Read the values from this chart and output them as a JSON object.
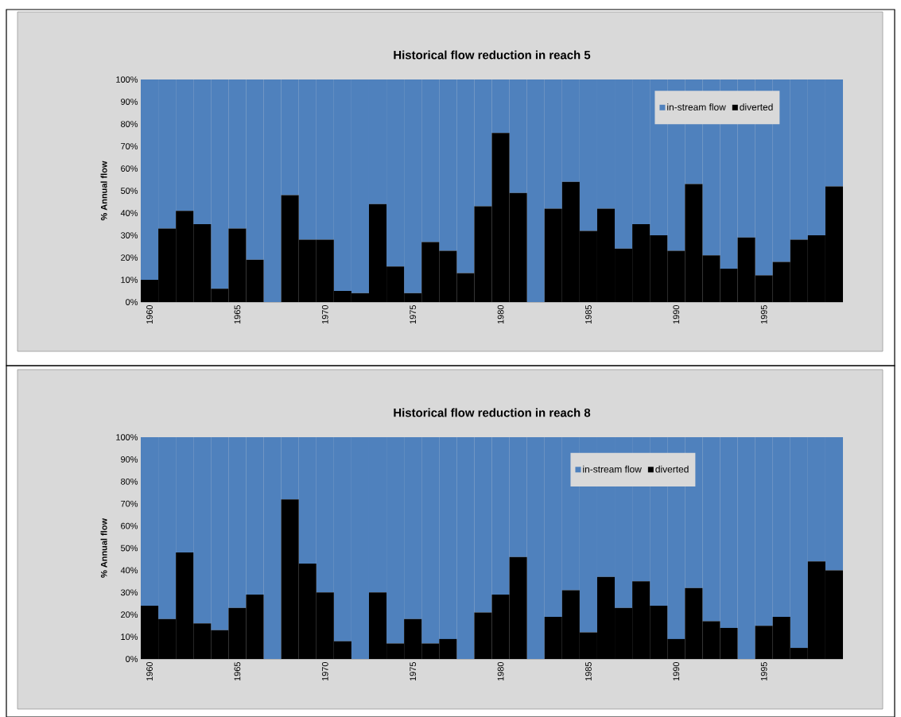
{
  "chart_data": [
    {
      "type": "bar",
      "title": "Historical flow reduction in reach 5",
      "ylabel": "% Annual flow",
      "stacked": true,
      "legend": "top right",
      "categories": [
        "1960",
        null,
        null,
        null,
        null,
        "1965",
        null,
        null,
        null,
        null,
        "1970",
        null,
        null,
        null,
        null,
        "1975",
        null,
        null,
        null,
        null,
        "1980",
        null,
        null,
        null,
        null,
        "1985",
        null,
        null,
        null,
        null,
        "1990",
        null,
        null,
        null,
        null,
        "1995",
        null,
        null,
        null,
        null
      ],
      "series": [
        {
          "name": "diverted",
          "color": "#000000",
          "values": [
            10,
            33,
            41,
            35,
            6,
            33,
            19,
            0,
            48,
            28,
            28,
            5,
            4,
            44,
            16,
            4,
            27,
            23,
            13,
            43,
            76,
            49,
            0,
            42,
            54,
            32,
            42,
            24,
            35,
            30,
            23,
            53,
            21,
            15,
            29,
            12,
            18,
            28,
            30,
            52
          ]
        },
        {
          "name": "in-stream flow",
          "color": "#4f81bd",
          "values": [
            90,
            67,
            59,
            65,
            94,
            67,
            81,
            100,
            52,
            72,
            72,
            95,
            96,
            56,
            84,
            96,
            73,
            77,
            87,
            57,
            24,
            51,
            100,
            58,
            46,
            68,
            58,
            76,
            65,
            70,
            77,
            47,
            79,
            85,
            71,
            88,
            82,
            72,
            70,
            48
          ]
        }
      ],
      "ylim": [
        0,
        100
      ],
      "yticks": [
        {
          "value": 0,
          "label": "0%"
        },
        {
          "value": 10,
          "label": "10%"
        },
        {
          "value": 20,
          "label": "20%"
        },
        {
          "value": 30,
          "label": "30%"
        },
        {
          "value": 40,
          "label": "40%"
        },
        {
          "value": 50,
          "label": "50%"
        },
        {
          "value": 60,
          "label": "60%"
        },
        {
          "value": 70,
          "label": "70%"
        },
        {
          "value": 80,
          "label": "80%"
        },
        {
          "value": 90,
          "label": "90%"
        },
        {
          "value": 100,
          "label": "100%"
        }
      ]
    },
    {
      "type": "bar",
      "title": "Historical flow reduction in reach 8",
      "ylabel": "% Annual flow",
      "stacked": true,
      "legend": "top",
      "categories": [
        "1960",
        null,
        null,
        null,
        null,
        "1965",
        null,
        null,
        null,
        null,
        "1970",
        null,
        null,
        null,
        null,
        "1975",
        null,
        null,
        null,
        null,
        "1980",
        null,
        null,
        null,
        null,
        "1985",
        null,
        null,
        null,
        null,
        "1990",
        null,
        null,
        null,
        null,
        "1995",
        null,
        null,
        null,
        null
      ],
      "series": [
        {
          "name": "diverted",
          "color": "#000000",
          "values": [
            24,
            18,
            48,
            16,
            13,
            23,
            29,
            0,
            72,
            43,
            30,
            8,
            0,
            30,
            7,
            18,
            7,
            9,
            0,
            21,
            29,
            46,
            0,
            19,
            31,
            12,
            37,
            23,
            35,
            24,
            9,
            32,
            17,
            14,
            0,
            15,
            19,
            5,
            44,
            40
          ]
        },
        {
          "name": "in-stream flow",
          "color": "#4f81bd",
          "values": [
            76,
            82,
            52,
            84,
            87,
            77,
            71,
            100,
            28,
            57,
            70,
            92,
            100,
            70,
            93,
            82,
            93,
            91,
            100,
            79,
            71,
            54,
            100,
            81,
            69,
            88,
            63,
            77,
            65,
            76,
            91,
            68,
            83,
            86,
            100,
            85,
            81,
            95,
            56,
            60
          ]
        }
      ],
      "ylim": [
        0,
        100
      ],
      "yticks": [
        {
          "value": 0,
          "label": "0%"
        },
        {
          "value": 10,
          "label": "10%"
        },
        {
          "value": 20,
          "label": "20%"
        },
        {
          "value": 30,
          "label": "30%"
        },
        {
          "value": 40,
          "label": "40%"
        },
        {
          "value": 50,
          "label": "50%"
        },
        {
          "value": 60,
          "label": "60%"
        },
        {
          "value": 70,
          "label": "70%"
        },
        {
          "value": 80,
          "label": "80%"
        },
        {
          "value": 90,
          "label": "90%"
        },
        {
          "value": 100,
          "label": "100%"
        }
      ]
    }
  ]
}
